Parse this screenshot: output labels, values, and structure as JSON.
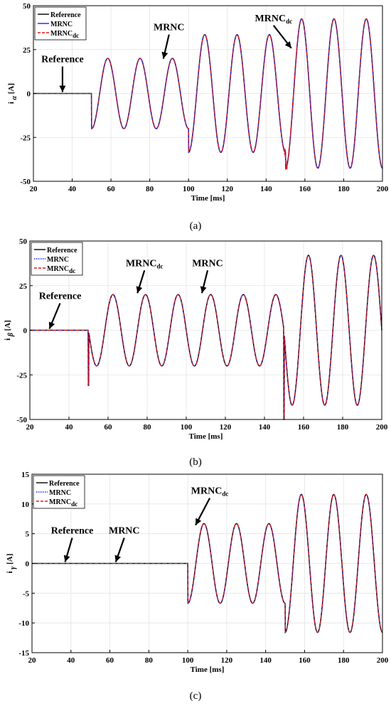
{
  "chart_data": [
    {
      "type": "line",
      "caption": "(a)",
      "xlabel": "Time [ms]",
      "ylabel": "i",
      "ylabel_sub": "α",
      "ylabel_unit": "[A]",
      "xlim": [
        20,
        200
      ],
      "ylim": [
        -50,
        50
      ],
      "xticks": [
        20,
        40,
        60,
        80,
        100,
        120,
        140,
        160,
        180,
        200
      ],
      "yticks": [
        -50,
        -25,
        0,
        25,
        50
      ],
      "grid": true,
      "legend_position": "top-left",
      "legend": [
        {
          "label": "Reference",
          "sub": "",
          "color": "#000000",
          "style": "solid"
        },
        {
          "label": "MRNC",
          "sub": "",
          "color": "#1a1aff",
          "style": "solid"
        },
        {
          "label": "MRNC",
          "sub": "dc",
          "color": "#e8161b",
          "style": "dashed"
        }
      ],
      "annotations": [
        {
          "text": "Reference",
          "sub": "",
          "x": 35,
          "y": 0
        },
        {
          "text": "MRNC",
          "sub": "",
          "x": 87,
          "y": 19
        },
        {
          "text": "MRNC",
          "sub": "dc",
          "x": 153,
          "y": 25
        }
      ],
      "signal": {
        "start_ms": 50,
        "freq_hz": 60,
        "phase_deg": -90,
        "amp1": 20,
        "amp2": 33.5,
        "amp3": 42.5,
        "t_switch1": 100,
        "t_switch2": 150,
        "dc_noise": {
          "from_ms": 149,
          "to_ms": 156,
          "amp": 3
        }
      }
    },
    {
      "type": "line",
      "caption": "(b)",
      "xlabel": "Time [ms]",
      "ylabel": "i",
      "ylabel_sub": "β",
      "ylabel_unit": "[A]",
      "xlim": [
        20,
        200
      ],
      "ylim": [
        -50,
        50
      ],
      "xticks": [
        20,
        40,
        60,
        80,
        100,
        120,
        140,
        160,
        180,
        200
      ],
      "yticks": [
        -50,
        -25,
        0,
        25,
        50
      ],
      "grid": true,
      "legend_position": "top-left",
      "legend": [
        {
          "label": "Reference",
          "sub": "",
          "color": "#000000",
          "style": "solid"
        },
        {
          "label": "MRNC",
          "sub": "",
          "color": "#1a1aff",
          "style": "dotted"
        },
        {
          "label": "MRNC",
          "sub": "dc",
          "color": "#e8161b",
          "style": "dashed"
        }
      ],
      "annotations": [
        {
          "text": "Reference",
          "sub": "",
          "x": 30,
          "y": 0
        },
        {
          "text": "MRNC",
          "sub": "dc",
          "x": 75,
          "y": 20
        },
        {
          "text": "MRNC",
          "sub": "",
          "x": 108,
          "y": 20
        }
      ],
      "signal": {
        "start_ms": 50,
        "freq_hz": 60,
        "phase_deg": 180,
        "amp1": 20,
        "amp2": 20,
        "amp3": 42,
        "t_switch1": 100,
        "t_switch2": 150,
        "spikes": [
          {
            "t": 50,
            "y": -31
          },
          {
            "t": 150,
            "y": -50
          }
        ]
      }
    },
    {
      "type": "line",
      "caption": "(c)",
      "xlabel": "Time [ms]",
      "ylabel": "i",
      "ylabel_sub": "γ",
      "ylabel_unit": "[A]",
      "xlim": [
        20,
        200
      ],
      "ylim": [
        -15,
        15
      ],
      "xticks": [
        20,
        40,
        60,
        80,
        100,
        120,
        140,
        160,
        180,
        200
      ],
      "yticks": [
        -15,
        -10,
        -5,
        0,
        5,
        10,
        15
      ],
      "grid": true,
      "legend_position": "top-left",
      "legend": [
        {
          "label": "Reference",
          "sub": "",
          "color": "#000000",
          "style": "solid"
        },
        {
          "label": "MRNC",
          "sub": "",
          "color": "#1a1aff",
          "style": "dotted"
        },
        {
          "label": "MRNC",
          "sub": "dc",
          "color": "#e8161b",
          "style": "dashed"
        }
      ],
      "annotations": [
        {
          "text": "Reference",
          "sub": "",
          "x": 37,
          "y": 0
        },
        {
          "text": "MRNC",
          "sub": "",
          "x": 63,
          "y": 0
        },
        {
          "text": "MRNC",
          "sub": "dc",
          "x": 104,
          "y": 6.2
        }
      ],
      "signal": {
        "start_ms": 100,
        "freq_hz": 60,
        "phase_deg": -90,
        "amp1": 0,
        "amp2": 6.7,
        "amp3": 11.6,
        "t_switch1": 100,
        "t_switch2": 150
      }
    }
  ]
}
